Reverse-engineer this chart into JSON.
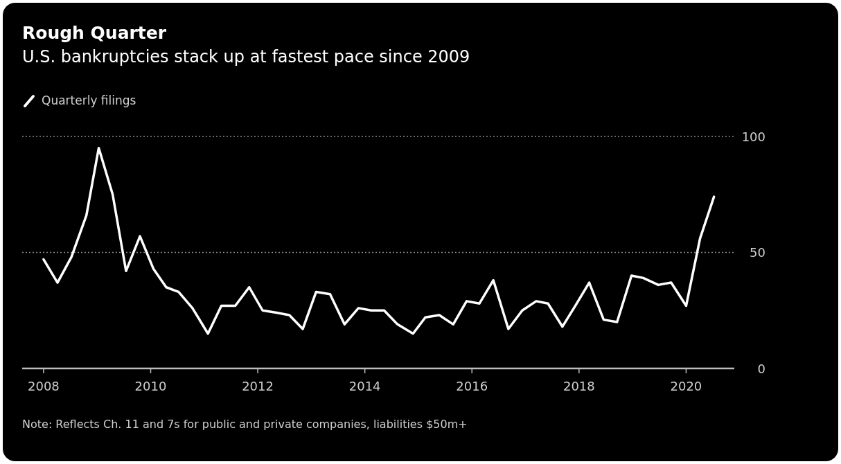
{
  "chart_data": {
    "type": "line",
    "title": "Rough Quarter",
    "subtitle": "U.S. bankruptcies stack up at fastest pace since 2009",
    "x": [
      2008.0,
      2008.26,
      2008.52,
      2008.8,
      2009.03,
      2009.29,
      2009.54,
      2009.8,
      2010.05,
      2010.29,
      2010.52,
      2010.78,
      2011.07,
      2011.32,
      2011.58,
      2011.84,
      2012.09,
      2012.35,
      2012.59,
      2012.84,
      2013.09,
      2013.35,
      2013.62,
      2013.88,
      2014.12,
      2014.36,
      2014.61,
      2014.9,
      2015.13,
      2015.39,
      2015.65,
      2015.9,
      2016.14,
      2016.4,
      2016.68,
      2016.94,
      2017.2,
      2017.42,
      2017.69,
      2017.93,
      2018.19,
      2018.46,
      2018.71,
      2018.98,
      2019.2,
      2019.48,
      2019.72,
      2020.0,
      2020.26,
      2020.52
    ],
    "series": [
      {
        "name": "Quarterly filings",
        "color": "#ffffff",
        "values": [
          47,
          37,
          48,
          66,
          95,
          75,
          42,
          57,
          43,
          35,
          33,
          26,
          15,
          27,
          27,
          35,
          25,
          24,
          23,
          17,
          33,
          32,
          19,
          26,
          25,
          25,
          19,
          15,
          22,
          23,
          19,
          29,
          28,
          38,
          17,
          25,
          29,
          28,
          18,
          27,
          37,
          21,
          20,
          40,
          39,
          36,
          37,
          27,
          56,
          74
        ]
      }
    ],
    "xlim": [
      2007.6,
      2020.9
    ],
    "xticks": [
      2008,
      2010,
      2012,
      2014,
      2016,
      2018,
      2020
    ],
    "ylim": [
      0,
      100
    ],
    "yticks": [
      0,
      50,
      100
    ],
    "grid": "y",
    "legend": "top left",
    "annotations": [
      "Note: Reflects Ch. 11 and 7s for public and private companies, liabilities $50m+"
    ]
  }
}
